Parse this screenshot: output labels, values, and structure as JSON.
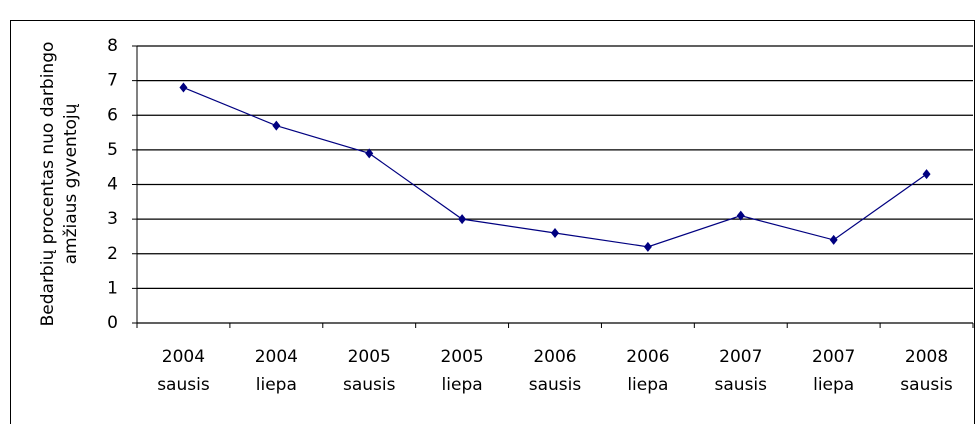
{
  "chart_data": {
    "type": "line",
    "ylabel": [
      "Bedarbių procentas nuo darbingo",
      "amžiaus gyventojų"
    ],
    "categories": [
      [
        "2004",
        "sausis"
      ],
      [
        "2004",
        "liepa"
      ],
      [
        "2005",
        "sausis"
      ],
      [
        "2005",
        "liepa"
      ],
      [
        "2006",
        "sausis"
      ],
      [
        "2006",
        "liepa"
      ],
      [
        "2007",
        "sausis"
      ],
      [
        "2007",
        "liepa"
      ],
      [
        "2008",
        "sausis"
      ]
    ],
    "series": [
      {
        "name": "Bedarbių procentas",
        "color": "#000080",
        "values": [
          6.8,
          5.7,
          4.9,
          3.0,
          2.6,
          2.2,
          3.1,
          2.4,
          4.3
        ]
      }
    ],
    "ylim": [
      0,
      8
    ],
    "yticks": [
      0,
      1,
      2,
      3,
      4,
      5,
      6,
      7,
      8
    ],
    "grid": true
  }
}
